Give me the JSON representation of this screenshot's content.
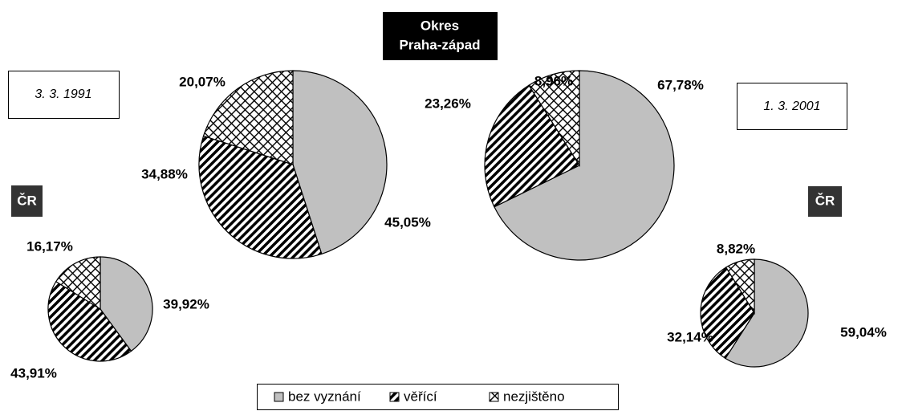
{
  "header": {
    "title": [
      "Okres",
      "Praha-západ"
    ],
    "dates": [
      "3. 3. 1991",
      "1. 3. 2001"
    ]
  },
  "chart_data": [
    {
      "type": "pie",
      "categories": [
        "bez vyznání",
        "věřící",
        "nezjištěno"
      ],
      "values": [
        45.05,
        34.88,
        20.07
      ],
      "value_labels": [
        "45,05%",
        "34,88%",
        "20,07%"
      ],
      "colors": [
        "#c0c0c0",
        "#000000",
        "#000000"
      ],
      "patterns": [
        "solid",
        "diagonal",
        "crosshatch"
      ]
    },
    {
      "type": "pie",
      "categories": [
        "bez vyznání",
        "věřící",
        "nezjištěno"
      ],
      "values": [
        67.78,
        23.26,
        8.96
      ],
      "value_labels": [
        "67,78%",
        "23,26%",
        "8,96%"
      ],
      "colors": [
        "#c0c0c0",
        "#000000",
        "#000000"
      ],
      "patterns": [
        "solid",
        "diagonal",
        "crosshatch"
      ]
    },
    {
      "type": "pie",
      "title": "ČR",
      "categories": [
        "bez vyznání",
        "věřící",
        "nezjištěno"
      ],
      "values": [
        39.92,
        43.91,
        16.17
      ],
      "value_labels": [
        "39,92%",
        "43,91%",
        "16,17%"
      ],
      "colors": [
        "#c0c0c0",
        "#000000",
        "#000000"
      ],
      "patterns": [
        "solid",
        "diagonal",
        "crosshatch"
      ]
    },
    {
      "type": "pie",
      "title": "ČR",
      "categories": [
        "bez vyznání",
        "věřící",
        "nezjištěno"
      ],
      "values": [
        59.04,
        32.14,
        8.82
      ],
      "value_labels": [
        "59,04%",
        "32,14%",
        "8,82%"
      ],
      "colors": [
        "#c0c0c0",
        "#000000",
        "#000000"
      ],
      "patterns": [
        "solid",
        "diagonal",
        "crosshatch"
      ]
    }
  ]
}
